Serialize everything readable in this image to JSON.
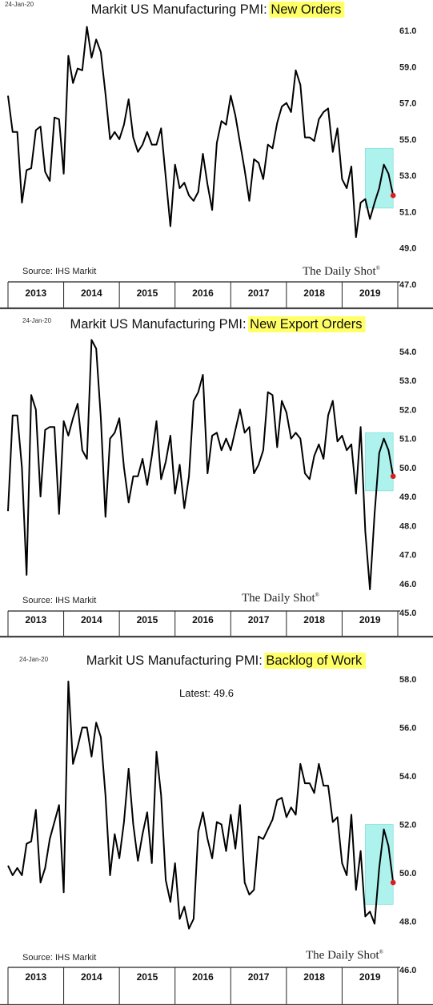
{
  "chart_data": [
    {
      "type": "line",
      "date": "24-Jan-20",
      "title_prefix": "Markit US Manufacturing PMI: ",
      "title_highlight": "New Orders",
      "source": "Source: IHS Markit",
      "brand": "The Daily Shot",
      "brand_mark": "®",
      "yticks": [
        "61.0",
        "59.0",
        "57.0",
        "55.0",
        "53.0",
        "51.0",
        "49.0",
        "47.0"
      ],
      "ylim": [
        47,
        61
      ],
      "years": [
        "2013",
        "2014",
        "2015",
        "2016",
        "2017",
        "2018",
        "2019"
      ],
      "x_range": [
        "2013-01",
        "2020-01"
      ],
      "highlight_range": [
        "2019-06",
        "2019-12"
      ],
      "highlight_y": [
        51.2,
        54.5
      ],
      "series": [
        {
          "start": "2013-01",
          "values": [
            57.4,
            55.4,
            55.4,
            51.5,
            53.3,
            53.4,
            55.5,
            55.7,
            53.2,
            52.7,
            56.2,
            56.1,
            53.1,
            59.6,
            58.1,
            58.9,
            58.8,
            61.2,
            59.5,
            60.5,
            59.8,
            57.5,
            55.0,
            55.4,
            55.0,
            55.8,
            57.2,
            55.1,
            54.3,
            54.7,
            55.4,
            54.7,
            54.7,
            55.6,
            52.9,
            50.2,
            53.6,
            52.3,
            52.6,
            51.9,
            51.6,
            52.1,
            54.2,
            52.5,
            51.1,
            54.8,
            56.0,
            55.8,
            57.4,
            56.3,
            54.8,
            53.3,
            51.6,
            53.9,
            53.7,
            52.8,
            54.7,
            54.5,
            55.9,
            56.8,
            57.0,
            56.5,
            58.8,
            58.0,
            55.1,
            55.1,
            54.9,
            56.1,
            56.5,
            56.7,
            54.3,
            55.6,
            52.8,
            52.3,
            53.5,
            49.6,
            51.5,
            51.7,
            50.6,
            51.5,
            52.3,
            53.6,
            53.1,
            51.9
          ]
        }
      ],
      "latest_value": 51.9
    },
    {
      "type": "line",
      "date": "24-Jan-20",
      "title_prefix": "Markit US Manufacturing PMI: ",
      "title_highlight": "New Export Orders",
      "source": "Source: IHS Markit",
      "brand": "The Daily Shot",
      "brand_mark": "®",
      "yticks": [
        "54.0",
        "53.0",
        "52.0",
        "51.0",
        "50.0",
        "49.0",
        "48.0",
        "47.0",
        "46.0",
        "45.0"
      ],
      "ylim": [
        45,
        54
      ],
      "years": [
        "2013",
        "2014",
        "2015",
        "2016",
        "2017",
        "2018",
        "2019"
      ],
      "x_range": [
        "2013-01",
        "2020-01"
      ],
      "highlight_range": [
        "2019-06",
        "2019-12"
      ],
      "highlight_y": [
        49.2,
        51.2
      ],
      "series": [
        {
          "start": "2013-01",
          "values": [
            48.5,
            51.8,
            51.8,
            50.0,
            46.3,
            52.5,
            52.0,
            49.0,
            51.3,
            51.4,
            51.4,
            48.4,
            51.6,
            51.1,
            51.7,
            52.2,
            50.6,
            50.3,
            54.4,
            54.1,
            51.7,
            48.3,
            51.0,
            51.2,
            51.7,
            50.0,
            48.8,
            49.7,
            49.7,
            50.3,
            49.4,
            50.4,
            51.6,
            49.6,
            50.2,
            51.1,
            49.1,
            50.1,
            48.6,
            49.7,
            52.3,
            52.6,
            53.2,
            49.8,
            51.1,
            51.2,
            50.6,
            51.0,
            50.6,
            51.3,
            52.0,
            51.2,
            51.4,
            49.8,
            50.1,
            50.6,
            52.6,
            52.5,
            50.7,
            52.3,
            51.9,
            51.0,
            51.2,
            51.0,
            49.8,
            49.6,
            50.4,
            50.8,
            50.3,
            51.8,
            52.3,
            50.9,
            51.1,
            50.6,
            50.8,
            49.1,
            51.4,
            47.8,
            45.8,
            48.4,
            50.5,
            51.0,
            50.6,
            49.7
          ]
        }
      ],
      "latest_value": 49.7
    },
    {
      "type": "line",
      "date": "24-Jan-20",
      "title_prefix": "Markit US Manufacturing PMI: ",
      "title_highlight": "Backlog of Work",
      "latest_label": "Latest:  49.6",
      "source": "Source: IHS Markit",
      "brand": "The Daily Shot",
      "brand_mark": "®",
      "yticks": [
        "58.0",
        "56.0",
        "54.0",
        "52.0",
        "50.0",
        "48.0",
        "46.0"
      ],
      "ylim": [
        46,
        58
      ],
      "years": [
        "2013",
        "2014",
        "2015",
        "2016",
        "2017",
        "2018",
        "2019"
      ],
      "x_range": [
        "2013-01",
        "2020-01"
      ],
      "highlight_range": [
        "2019-06",
        "2019-12"
      ],
      "highlight_y": [
        48.7,
        52.0
      ],
      "series": [
        {
          "start": "2013-01",
          "values": [
            50.3,
            49.9,
            50.2,
            49.9,
            51.2,
            51.3,
            52.6,
            49.6,
            50.2,
            51.4,
            52.1,
            52.8,
            49.2,
            57.9,
            54.5,
            55.2,
            56.0,
            56.0,
            54.8,
            56.2,
            55.6,
            53.2,
            49.9,
            51.6,
            50.6,
            52.1,
            54.3,
            52.0,
            50.5,
            51.6,
            52.5,
            50.4,
            55.0,
            53.2,
            49.7,
            48.8,
            50.4,
            48.1,
            48.6,
            47.7,
            48.1,
            51.7,
            52.5,
            51.4,
            50.6,
            52.1,
            52.0,
            50.9,
            52.4,
            51.0,
            52.8,
            49.6,
            49.1,
            49.3,
            51.5,
            51.4,
            51.8,
            52.2,
            53.0,
            53.1,
            52.3,
            52.7,
            52.4,
            54.5,
            53.7,
            53.7,
            53.3,
            54.5,
            53.6,
            53.6,
            52.1,
            52.3,
            50.4,
            49.9,
            52.4,
            49.3,
            50.9,
            48.2,
            48.4,
            47.9,
            50.2,
            51.8,
            51.1,
            49.6
          ]
        }
      ],
      "latest_value": 49.6
    }
  ]
}
